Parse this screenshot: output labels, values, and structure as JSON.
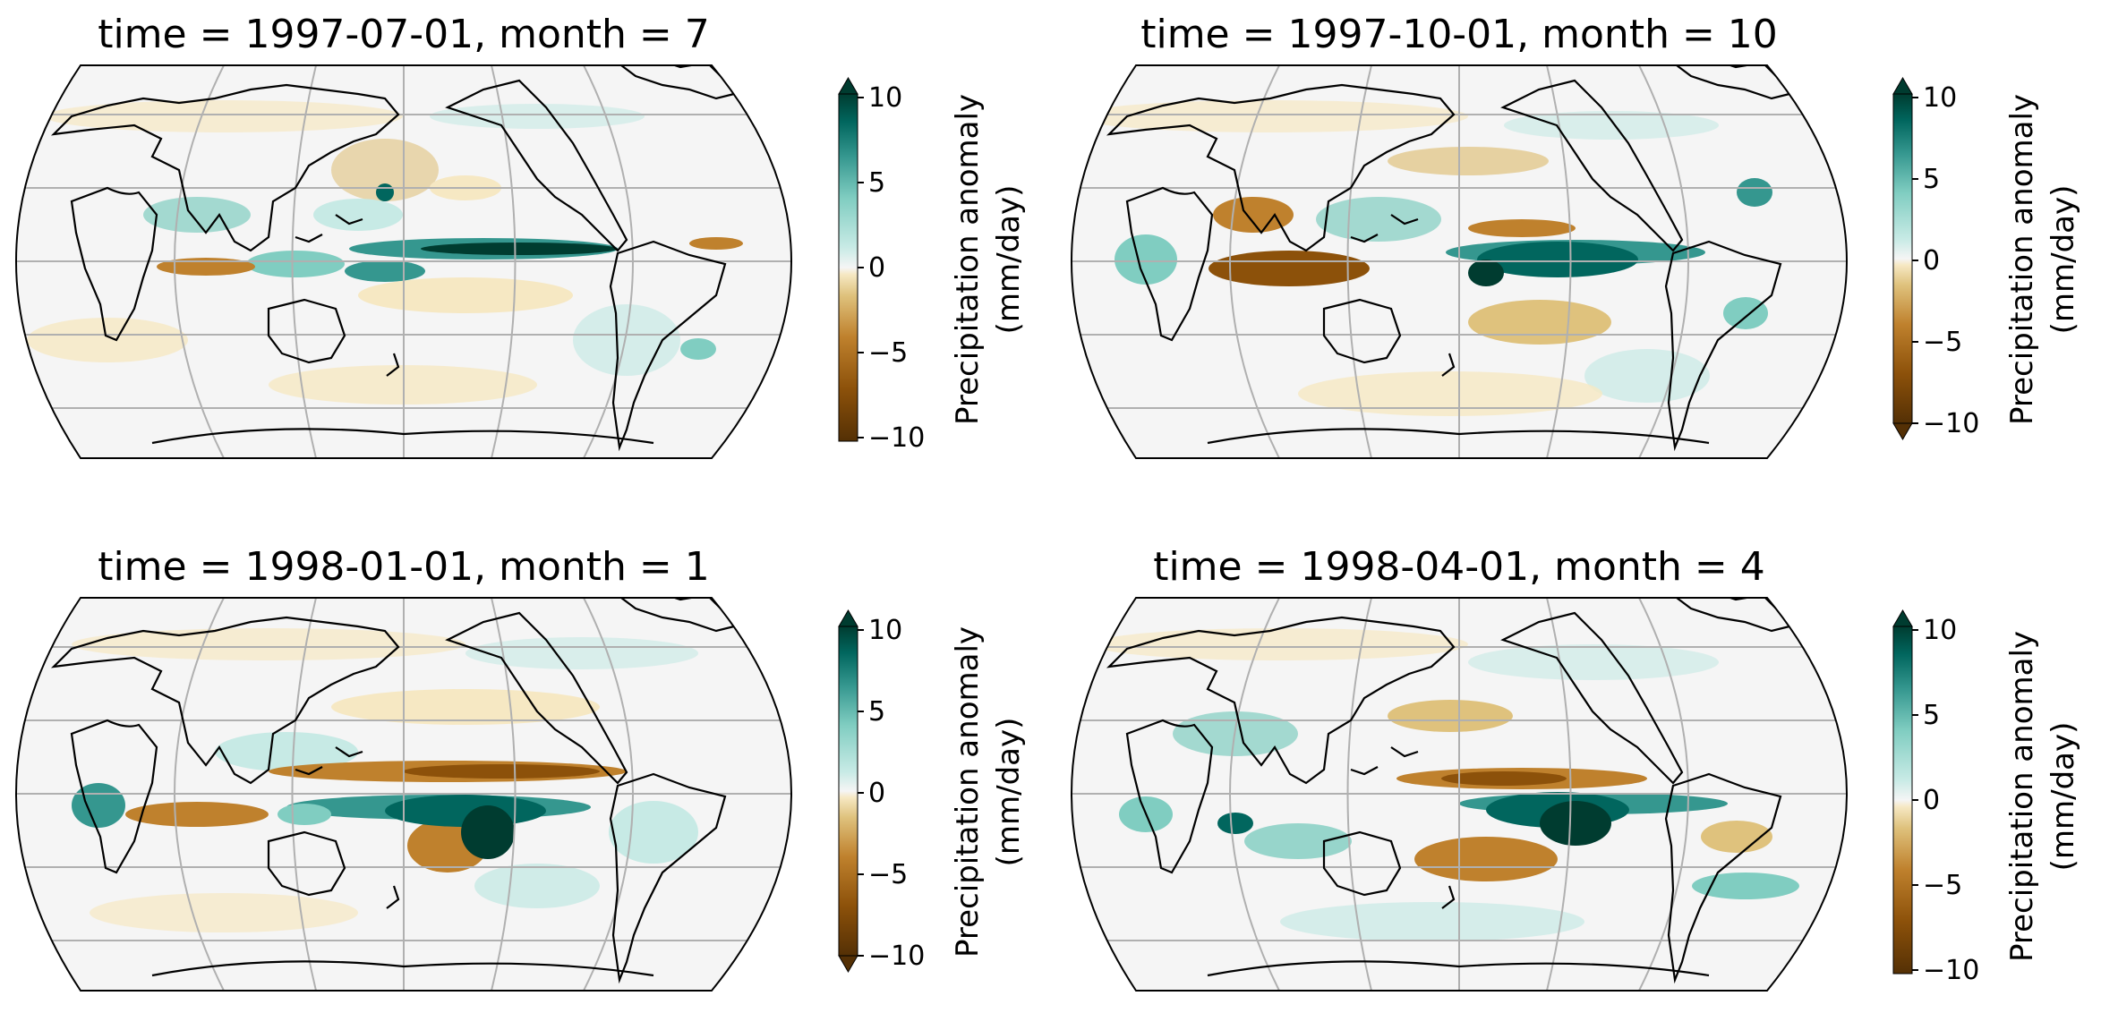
{
  "figure": {
    "panels": [
      {
        "title": "time = 1997-07-01, month = 7",
        "colorbar": {
          "label_line1": "Precipitation anomaly",
          "label_line2": "(mm/day)",
          "ticks": [
            "10",
            "5",
            "0",
            "−5",
            "−10"
          ],
          "extend_max": true,
          "extend_min": false
        }
      },
      {
        "title": "time = 1997-10-01, month = 10",
        "colorbar": {
          "label_line1": "Precipitation anomaly",
          "label_line2": "(mm/day)",
          "ticks": [
            "10",
            "5",
            "0",
            "−5",
            "−10"
          ],
          "extend_max": true,
          "extend_min": true
        }
      },
      {
        "title": "time = 1998-01-01, month = 1",
        "colorbar": {
          "label_line1": "Precipitation anomaly",
          "label_line2": "(mm/day)",
          "ticks": [
            "10",
            "5",
            "0",
            "−5",
            "−10"
          ],
          "extend_max": true,
          "extend_min": true
        }
      },
      {
        "title": "time = 1998-04-01, month = 4",
        "colorbar": {
          "label_line1": "Precipitation anomaly",
          "label_line2": "(mm/day)",
          "ticks": [
            "10",
            "5",
            "0",
            "−5",
            "−10"
          ],
          "extend_max": true,
          "extend_min": false
        }
      }
    ],
    "colors": {
      "positive_max": "#00443a",
      "positive_mid": "#35978f",
      "positive_low": "#c7eae5",
      "neutral": "#f5f5f5",
      "negative_low": "#f6e8c3",
      "negative_mid": "#bf812d",
      "negative_max": "#543005",
      "coastline": "#000000",
      "gridline": "#b0b0b0"
    }
  }
}
